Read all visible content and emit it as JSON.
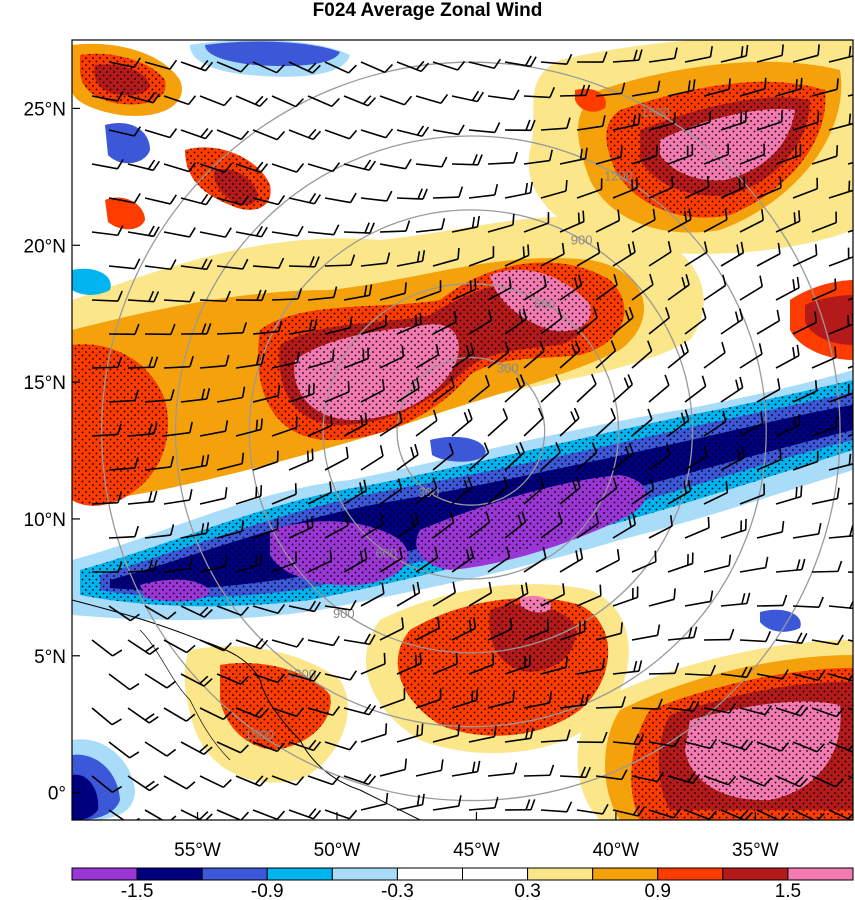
{
  "title": "F024 Average Zonal Wind",
  "map": {
    "lon_range": [
      -59.5,
      -31.5
    ],
    "lat_range": [
      -1,
      27.5
    ],
    "lat_ticks": [
      {
        "value": 25,
        "label": "25°N"
      },
      {
        "value": 20,
        "label": "20°N"
      },
      {
        "value": 15,
        "label": "15°N"
      },
      {
        "value": 10,
        "label": "10°N"
      },
      {
        "value": 5,
        "label": "5°N"
      },
      {
        "value": 0,
        "label": "0°"
      }
    ],
    "lon_ticks": [
      {
        "value": -55,
        "label": "55°W"
      },
      {
        "value": -50,
        "label": "50°W"
      },
      {
        "value": -45,
        "label": "45°W"
      },
      {
        "value": -40,
        "label": "40°W"
      },
      {
        "value": -35,
        "label": "35°W"
      }
    ],
    "range_rings": {
      "center": {
        "lon": -45.2,
        "lat": 13.2
      },
      "rings": [
        {
          "radius_km": 300,
          "label": "300"
        },
        {
          "radius_km": 600,
          "label": "600"
        },
        {
          "radius_km": 900,
          "label": "900"
        },
        {
          "radius_km": 1200,
          "label": "1200"
        },
        {
          "radius_km": 1500,
          "label": "1500"
        }
      ]
    }
  },
  "colorbar": {
    "colors": [
      "#9a36d6",
      "#00007f",
      "#3c58d8",
      "#00b4f0",
      "#a8dcf8",
      "#ffffff",
      "#ffffff",
      "#fbe68a",
      "#f5a10c",
      "#ff3c00",
      "#b41a1a",
      "#f47ab2"
    ],
    "tick_labels": [
      "-1.5",
      "-0.9",
      "-0.3",
      "0.3",
      "0.9",
      "1.5"
    ],
    "tick_after_box": [
      1,
      3,
      5,
      7,
      9,
      11
    ]
  }
}
